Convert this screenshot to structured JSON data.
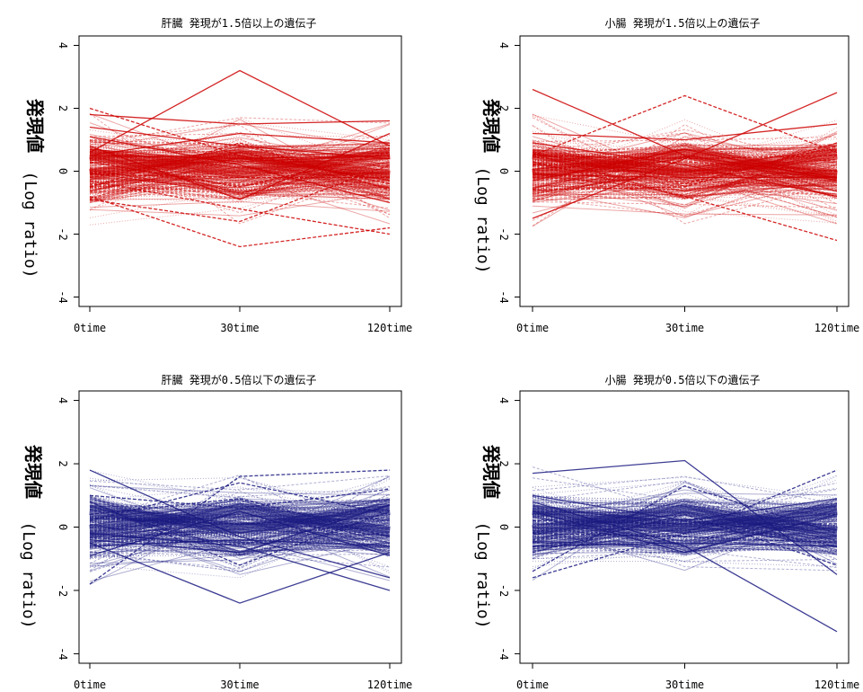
{
  "chart_data": [
    {
      "type": "line",
      "title": "肝臓 発現が1.5倍以上の遺伝子",
      "ylabel_jp": "発現値",
      "ylabel_en": "(Log ratio)",
      "categories": [
        "0time",
        "30time",
        "120time"
      ],
      "yticks": [
        -4,
        -2,
        0,
        2,
        4
      ],
      "ylim": [
        -4.3,
        4.3
      ],
      "color": "#cc0000",
      "series": [
        {
          "values": [
            0.6,
            3.2,
            0.8
          ]
        },
        {
          "values": [
            2.0,
            0.5,
            -0.3
          ]
        },
        {
          "values": [
            1.8,
            1.5,
            1.6
          ]
        },
        {
          "values": [
            -0.8,
            -2.4,
            -1.8
          ]
        },
        {
          "values": [
            1.4,
            0.8,
            0.4
          ]
        },
        {
          "values": [
            -0.3,
            -1.2,
            -2.0
          ]
        },
        {
          "values": [
            0.5,
            1.2,
            0.9
          ]
        },
        {
          "values": [
            0.3,
            -0.5,
            0.6
          ]
        },
        {
          "values": [
            0.7,
            0.3,
            0.5
          ]
        },
        {
          "values": [
            -0.2,
            0.6,
            -0.4
          ]
        },
        {
          "values": [
            0.5,
            0.4,
            0.5
          ]
        },
        {
          "values": [
            -0.1,
            -0.2,
            -0.2
          ]
        },
        {
          "values": [
            0.8,
            -0.9,
            1.2
          ]
        },
        {
          "values": [
            -0.5,
            0.9,
            -0.6
          ]
        },
        {
          "values": [
            1.1,
            0.2,
            -1.0
          ]
        },
        {
          "values": [
            -0.9,
            -1.6,
            0.2
          ]
        }
      ]
    },
    {
      "type": "line",
      "title": "小腸 発現が1.5倍以上の遺伝子",
      "ylabel_jp": "発現値",
      "ylabel_en": "(Log ratio)",
      "categories": [
        "0time",
        "30time",
        "120time"
      ],
      "yticks": [
        -4,
        -2,
        0,
        2,
        4
      ],
      "ylim": [
        -4.3,
        4.3
      ],
      "color": "#cc0000",
      "series": [
        {
          "values": [
            2.6,
            0.5,
            -0.2
          ]
        },
        {
          "values": [
            0.5,
            2.4,
            0.6
          ]
        },
        {
          "values": [
            -1.5,
            0.4,
            2.5
          ]
        },
        {
          "values": [
            0.3,
            -0.8,
            -2.2
          ]
        },
        {
          "values": [
            1.2,
            1.0,
            1.5
          ]
        },
        {
          "values": [
            0.5,
            0.4,
            0.5
          ]
        },
        {
          "values": [
            -0.1,
            -0.2,
            -0.2
          ]
        },
        {
          "values": [
            0.6,
            -0.4,
            0.8
          ]
        },
        {
          "values": [
            -0.3,
            0.7,
            -0.3
          ]
        },
        {
          "values": [
            0.2,
            0.3,
            0.0
          ]
        },
        {
          "values": [
            0.9,
            0.2,
            -0.8
          ]
        },
        {
          "values": [
            -0.6,
            -0.5,
            0.9
          ]
        }
      ]
    },
    {
      "type": "line",
      "title": "肝臓 発現が0.5倍以下の遺伝子",
      "ylabel_jp": "発現値",
      "ylabel_en": "(Log ratio)",
      "categories": [
        "0time",
        "30time",
        "120time"
      ],
      "yticks": [
        -4,
        -2,
        0,
        2,
        4
      ],
      "ylim": [
        -4.3,
        4.3
      ],
      "color": "#1a1a80",
      "series": [
        {
          "values": [
            1.8,
            -0.3,
            -1.6
          ]
        },
        {
          "values": [
            -1.8,
            1.6,
            1.8
          ]
        },
        {
          "values": [
            -0.5,
            -2.4,
            -0.8
          ]
        },
        {
          "values": [
            0.2,
            1.4,
            0.4
          ]
        },
        {
          "values": [
            -0.6,
            -0.4,
            -0.6
          ]
        },
        {
          "values": [
            0.3,
            0.1,
            0.3
          ]
        },
        {
          "values": [
            -0.2,
            -0.6,
            -2.0
          ]
        },
        {
          "values": [
            0.8,
            -1.2,
            0.5
          ]
        },
        {
          "values": [
            -0.9,
            0.5,
            -0.9
          ]
        },
        {
          "values": [
            0.4,
            0.9,
            -0.3
          ]
        },
        {
          "values": [
            -0.4,
            -0.8,
            0.7
          ]
        },
        {
          "values": [
            1.0,
            0.6,
            1.2
          ]
        }
      ]
    },
    {
      "type": "line",
      "title": "小腸 発現が0.5倍以下の遺伝子",
      "ylabel_jp": "発現値",
      "ylabel_en": "(Log ratio)",
      "categories": [
        "0time",
        "30time",
        "120time"
      ],
      "yticks": [
        -4,
        -2,
        0,
        2,
        4
      ],
      "ylim": [
        -4.3,
        4.3
      ],
      "color": "#1a1a80",
      "series": [
        {
          "values": [
            1.7,
            2.1,
            -1.5
          ]
        },
        {
          "values": [
            -1.6,
            -0.2,
            1.8
          ]
        },
        {
          "values": [
            0.8,
            -0.6,
            -3.3
          ]
        },
        {
          "values": [
            -1.4,
            1.3,
            -0.2
          ]
        },
        {
          "values": [
            -0.6,
            -0.5,
            -0.6
          ]
        },
        {
          "values": [
            0.2,
            0.1,
            0.1
          ]
        },
        {
          "values": [
            0.5,
            -0.8,
            0.4
          ]
        },
        {
          "values": [
            -0.8,
            0.4,
            -1.2
          ]
        },
        {
          "values": [
            1.0,
            0.2,
            0.9
          ]
        },
        {
          "values": [
            -0.2,
            -0.3,
            -0.5
          ]
        }
      ]
    }
  ]
}
